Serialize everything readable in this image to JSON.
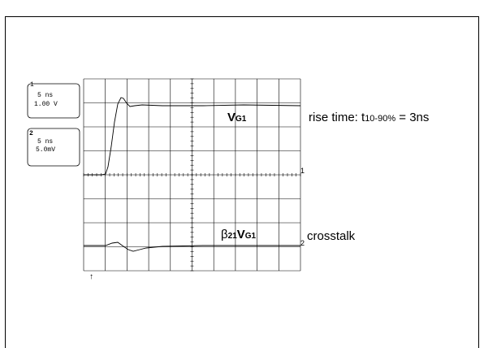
{
  "channels": [
    {
      "number": "1",
      "timebase": "5 ns",
      "scale": "1.00 V"
    },
    {
      "number": "2",
      "timebase": "5 ns",
      "scale": "5.0mV"
    }
  ],
  "labels": {
    "vg1_main": "V",
    "vg1_sub": "G1",
    "rise_prefix": "rise time: t",
    "rise_sub": "10-90%",
    "rise_suffix": " = 3ns",
    "beta": "β",
    "beta_sub": "21",
    "beta_v": "V",
    "beta_vsub": "G1",
    "crosstalk": "crosstalk",
    "marker1": "1",
    "marker2": "2",
    "trigger": "↑"
  }
}
